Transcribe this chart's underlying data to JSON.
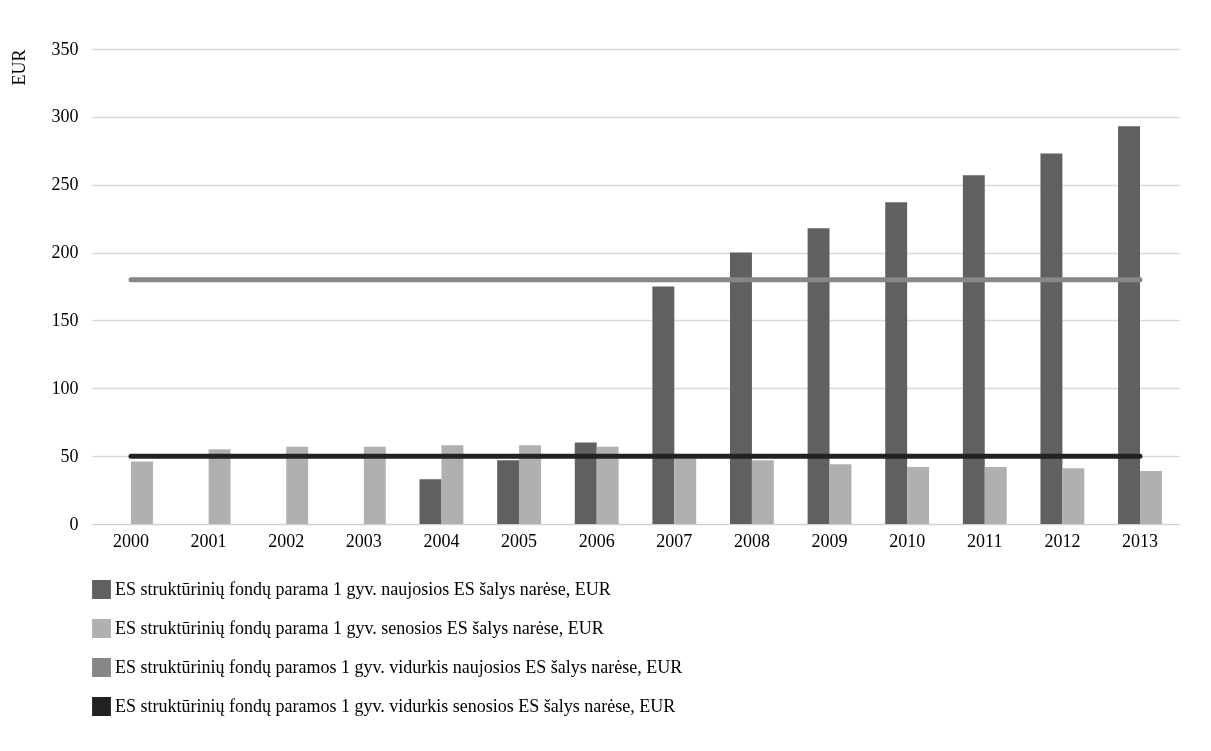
{
  "chart_data": {
    "type": "bar",
    "ylabel": "EUR",
    "categories": [
      "2000",
      "2001",
      "2002",
      "2003",
      "2004",
      "2005",
      "2006",
      "2007",
      "2008",
      "2009",
      "2010",
      "2011",
      "2012",
      "2013"
    ],
    "series": [
      {
        "name": "ES struktūrinių fondų parama 1 gyv. naujosios ES šalys narėse, EUR",
        "color": "#606060",
        "values": [
          null,
          null,
          null,
          null,
          33,
          47,
          60,
          175,
          200,
          218,
          237,
          257,
          273,
          293
        ]
      },
      {
        "name": "ES struktūrinių fondų parama 1 gyv. senosios ES šalys narėse, EUR",
        "color": "#b0b0b0",
        "values": [
          46,
          55,
          57,
          57,
          58,
          58,
          57,
          48,
          47,
          44,
          42,
          42,
          41,
          39
        ]
      },
      {
        "name": "ES struktūrinių fondų paramos 1 gyv. vidurkis naujosios ES šalys narėse, EUR",
        "type": "line",
        "color": "#878787",
        "values": [
          180,
          180,
          180,
          180,
          180,
          180,
          180,
          180,
          180,
          180,
          180,
          180,
          180,
          180
        ]
      },
      {
        "name": "ES struktūrinių fondų paramos 1 gyv. vidurkis senosios ES šalys narėse, EUR",
        "type": "line",
        "color": "#222222",
        "values": [
          50,
          50,
          50,
          50,
          50,
          50,
          50,
          50,
          50,
          50,
          50,
          50,
          50,
          50
        ]
      }
    ],
    "ylim": [
      0,
      350
    ],
    "yticks": [
      0,
      50,
      100,
      150,
      200,
      250,
      300,
      350
    ],
    "grid": "y",
    "legend": "bottom",
    "marker": "none",
    "line_style": "solid"
  }
}
